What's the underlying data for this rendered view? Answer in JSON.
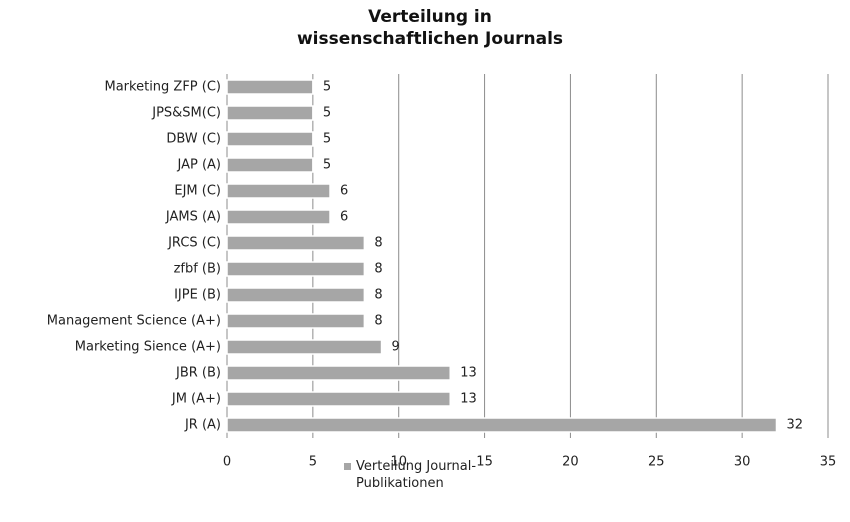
{
  "chart_data": {
    "type": "hbar",
    "title": "Verteilung in wissenschaftlichen Journals",
    "categories": [
      "Marketing ZFP (C)",
      "JPS&SM(C)",
      "DBW (C)",
      "JAP (A)",
      "EJM (C)",
      "JAMS (A)",
      "JRCS (C)",
      "zfbf (B)",
      "IJPE (B)",
      "Management Science (A+)",
      "Marketing Sience (A+)",
      "JBR (B)",
      "JM (A+)",
      "JR (A)"
    ],
    "series": [
      {
        "name": "Verteilung Journal-Publikationen",
        "color": "#a6a6a6",
        "values": [
          5,
          5,
          5,
          5,
          6,
          6,
          8,
          8,
          8,
          8,
          9,
          13,
          13,
          32
        ]
      }
    ],
    "xlim": [
      0,
      35
    ],
    "xticks": [
      0,
      5,
      10,
      15,
      20,
      25,
      30,
      35
    ],
    "grid": true
  }
}
